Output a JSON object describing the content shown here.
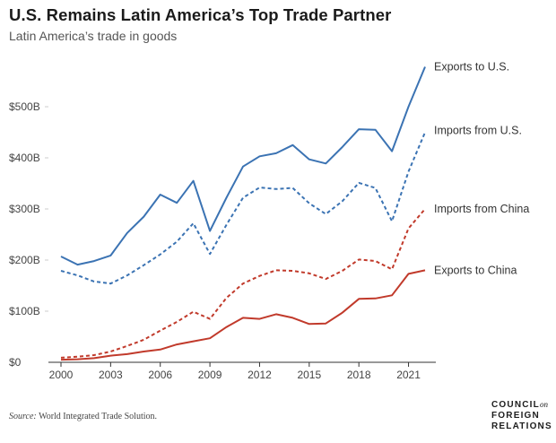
{
  "header": {
    "title": "U.S. Remains Latin America’s Top Trade Partner",
    "subtitle": "Latin America’s trade in goods"
  },
  "source": {
    "label": "Source:",
    "text": "World Integrated Trade Solution."
  },
  "logo": {
    "line1": "COUNCIL",
    "line1_small": "on",
    "line2": "FOREIGN",
    "line3": "RELATIONS"
  },
  "colors": {
    "us": "#3b73b3",
    "china": "#c13a2b",
    "grid": "#cccccc"
  },
  "chart_data": {
    "type": "line",
    "title": "U.S. Remains Latin America’s Top Trade Partner",
    "subtitle": "Latin America’s trade in goods",
    "xlabel": "",
    "ylabel": "",
    "x": [
      2000,
      2001,
      2002,
      2003,
      2004,
      2005,
      2006,
      2007,
      2008,
      2009,
      2010,
      2011,
      2012,
      2013,
      2014,
      2015,
      2016,
      2017,
      2018,
      2019,
      2020,
      2021,
      2022
    ],
    "xlim": [
      2000,
      2022
    ],
    "ylim": [
      0,
      600
    ],
    "x_ticks": [
      2000,
      2003,
      2006,
      2009,
      2012,
      2015,
      2018,
      2021
    ],
    "x_tick_labels": [
      "2000",
      "2003",
      "2006",
      "2009",
      "2012",
      "2015",
      "2018",
      "2021"
    ],
    "y_ticks": [
      0,
      100,
      200,
      300,
      400,
      500
    ],
    "y_tick_labels": [
      "$0",
      "$100B",
      "$200B",
      "$300B",
      "$400B",
      "$500B"
    ],
    "series": [
      {
        "name": "Exports to U.S.",
        "color": "us",
        "style": "solid",
        "values": [
          207,
          191,
          198,
          209,
          253,
          285,
          328,
          312,
          355,
          257,
          322,
          383,
          403,
          409,
          425,
          397,
          389,
          421,
          456,
          455,
          413,
          500,
          578
        ]
      },
      {
        "name": "Imports from U.S.",
        "color": "us",
        "style": "dashed",
        "values": [
          179,
          170,
          158,
          154,
          170,
          190,
          211,
          236,
          272,
          212,
          269,
          322,
          342,
          339,
          341,
          311,
          290,
          315,
          351,
          341,
          276,
          373,
          450
        ]
      },
      {
        "name": "Imports from China",
        "color": "china",
        "style": "dashed",
        "values": [
          9,
          11,
          14,
          21,
          32,
          44,
          62,
          79,
          99,
          85,
          126,
          154,
          169,
          180,
          179,
          174,
          163,
          179,
          201,
          198,
          182,
          262,
          300
        ]
      },
      {
        "name": "Exports to China",
        "color": "china",
        "style": "solid",
        "values": [
          5,
          6,
          8,
          13,
          16,
          21,
          25,
          35,
          41,
          47,
          69,
          87,
          85,
          94,
          87,
          75,
          76,
          97,
          124,
          125,
          131,
          173,
          180
        ]
      }
    ]
  }
}
